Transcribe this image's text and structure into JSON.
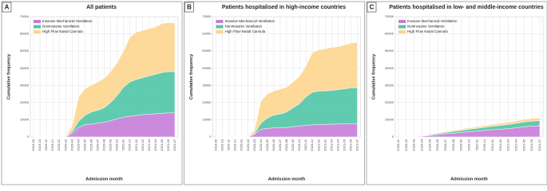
{
  "chart_data": [
    {
      "type": "stacked-area",
      "panel": "A",
      "title": "All patients",
      "x_label": "Admission month",
      "y_label": "Cumulative frequency",
      "categories": [
        "2019-09",
        "2019-10",
        "2019-11",
        "2019-12",
        "2020-01",
        "2020-02",
        "2020-03",
        "2020-04",
        "2020-05",
        "2020-06",
        "2020-07",
        "2020-08",
        "2020-09",
        "2020-10",
        "2020-11",
        "2020-12",
        "2021-01",
        "2021-02",
        "2021-03",
        "2021-04",
        "2021-05",
        "2021-06",
        "2021-07"
      ],
      "ylim": [
        0,
        70000
      ],
      "yticks": [
        0,
        10000,
        20000,
        30000,
        40000,
        50000,
        60000,
        70000
      ],
      "grid": true,
      "series": [
        {
          "name": "Invasive Mechanical Ventilation",
          "color": "#c77dd8",
          "values": [
            0,
            0,
            0,
            0,
            0,
            0,
            2000,
            5500,
            7000,
            7500,
            8000,
            8500,
            9500,
            10500,
            11500,
            12000,
            12500,
            13000,
            13200,
            13500,
            13800,
            14000,
            14000
          ]
        },
        {
          "name": "Noninvasive Ventilation",
          "color": "#4fc5a6",
          "values": [
            0,
            0,
            0,
            0,
            0,
            0,
            1000,
            3500,
            5500,
            7000,
            7500,
            8500,
            10500,
            13500,
            17500,
            20000,
            21000,
            21500,
            22300,
            23000,
            23700,
            24000,
            24000
          ]
        },
        {
          "name": "High Flow Nasal Cannula",
          "color": "#fdd58f",
          "values": [
            0,
            0,
            0,
            0,
            0,
            0,
            3000,
            14000,
            15500,
            15500,
            16500,
            17000,
            18000,
            19000,
            21000,
            26000,
            27500,
            27500,
            27500,
            27500,
            28500,
            28500,
            28500
          ]
        }
      ]
    },
    {
      "type": "stacked-area",
      "panel": "B",
      "title": "Patients hospitalised in high-income countries",
      "x_label": "Admission month",
      "y_label": "Cumulative frequency",
      "categories": [
        "2019-09",
        "2019-10",
        "2019-11",
        "2019-12",
        "2020-01",
        "2020-02",
        "2020-03",
        "2020-04",
        "2020-05",
        "2020-06",
        "2020-07",
        "2020-08",
        "2020-09",
        "2020-10",
        "2020-11",
        "2020-12",
        "2021-01",
        "2021-02",
        "2021-03",
        "2021-04",
        "2021-05",
        "2021-06",
        "2021-07"
      ],
      "ylim": [
        0,
        70000
      ],
      "yticks": [
        0,
        10000,
        20000,
        30000,
        40000,
        50000,
        60000,
        70000
      ],
      "grid": true,
      "series": [
        {
          "name": "Invasive Mechanical Ventilation",
          "color": "#c77dd8",
          "values": [
            0,
            0,
            0,
            0,
            0,
            0,
            1500,
            4500,
            5000,
            5200,
            5300,
            5500,
            6000,
            6300,
            6800,
            7000,
            7200,
            7300,
            7400,
            7500,
            7500,
            7600,
            7600
          ]
        },
        {
          "name": "Noninvasive Ventilation",
          "color": "#4fc5a6",
          "values": [
            0,
            0,
            0,
            0,
            0,
            0,
            500,
            3500,
            6000,
            7500,
            8000,
            9000,
            11000,
            13000,
            16500,
            19000,
            19500,
            19500,
            19700,
            20000,
            20500,
            21000,
            21000
          ]
        },
        {
          "name": "High Flow Nasal Cannula",
          "color": "#fdd58f",
          "values": [
            0,
            0,
            0,
            0,
            0,
            0,
            2000,
            13000,
            14000,
            14000,
            14500,
            14500,
            15000,
            16000,
            18000,
            23000,
            24000,
            24500,
            25000,
            25000,
            25500,
            26000,
            26500
          ]
        }
      ]
    },
    {
      "type": "stacked-area",
      "panel": "C",
      "title": "Patients hospitalised in low- and middle-income countries",
      "x_label": "Admission month",
      "y_label": "Cumulative frequency",
      "categories": [
        "2020-01",
        "2020-02",
        "2020-03",
        "2020-04",
        "2020-05",
        "2020-06",
        "2020-07",
        "2020-08",
        "2020-09",
        "2020-10",
        "2020-11",
        "2020-12",
        "2021-01",
        "2021-02",
        "2021-03",
        "2021-04",
        "2021-05",
        "2021-06",
        "2021-07"
      ],
      "ylim": [
        0,
        70000
      ],
      "yticks": [
        0,
        10000,
        20000,
        30000,
        40000,
        50000,
        60000,
        70000
      ],
      "grid": true,
      "series": [
        {
          "name": "Invasive Mechanical Ventilation",
          "color": "#c77dd8",
          "values": [
            0,
            0,
            100,
            400,
            800,
            1300,
            1800,
            2200,
            2600,
            3000,
            3400,
            3800,
            4200,
            4500,
            4800,
            5300,
            5900,
            6300,
            6500
          ]
        },
        {
          "name": "Noninvasive Ventilation",
          "color": "#4fc5a6",
          "values": [
            0,
            0,
            50,
            200,
            400,
            600,
            800,
            1000,
            1200,
            1400,
            1600,
            1800,
            2000,
            2200,
            2400,
            2600,
            2800,
            2900,
            3000
          ]
        },
        {
          "name": "High Flow Nasal Cannula",
          "color": "#fdd58f",
          "values": [
            0,
            0,
            50,
            150,
            300,
            400,
            500,
            600,
            700,
            800,
            900,
            1000,
            1100,
            1200,
            1300,
            1400,
            1500,
            1550,
            1600
          ]
        }
      ]
    }
  ]
}
